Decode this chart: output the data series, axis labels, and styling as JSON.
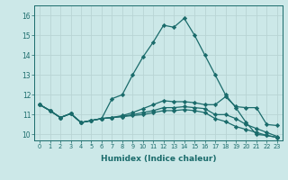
{
  "xlabel": "Humidex (Indice chaleur)",
  "background_color": "#cce8e8",
  "grid_color": "#b8d4d4",
  "line_color": "#1a6b6b",
  "xlim": [
    -0.5,
    23.5
  ],
  "ylim": [
    9.7,
    16.5
  ],
  "xticks": [
    0,
    1,
    2,
    3,
    4,
    5,
    6,
    7,
    8,
    9,
    10,
    11,
    12,
    13,
    14,
    15,
    16,
    17,
    18,
    19,
    20,
    21,
    22,
    23
  ],
  "yticks": [
    10,
    11,
    12,
    13,
    14,
    15,
    16
  ],
  "series": [
    [
      11.5,
      11.2,
      10.85,
      11.05,
      10.6,
      10.7,
      10.8,
      11.8,
      12.0,
      13.0,
      13.9,
      14.65,
      15.5,
      15.4,
      15.85,
      15.0,
      14.0,
      13.0,
      12.0,
      11.35,
      10.6,
      10.0,
      9.95,
      9.85
    ],
    [
      11.5,
      11.2,
      10.85,
      11.05,
      10.6,
      10.7,
      10.8,
      10.85,
      10.95,
      11.1,
      11.3,
      11.5,
      11.7,
      11.65,
      11.65,
      11.6,
      11.5,
      11.5,
      11.9,
      11.4,
      11.35,
      11.35,
      10.5,
      10.45
    ],
    [
      11.5,
      11.2,
      10.85,
      11.05,
      10.6,
      10.7,
      10.8,
      10.85,
      10.9,
      11.0,
      11.1,
      11.2,
      11.35,
      11.35,
      11.4,
      11.35,
      11.3,
      11.0,
      11.0,
      10.8,
      10.5,
      10.3,
      10.1,
      9.9
    ],
    [
      11.5,
      11.2,
      10.85,
      11.05,
      10.6,
      10.7,
      10.8,
      10.85,
      10.9,
      10.95,
      11.0,
      11.1,
      11.2,
      11.2,
      11.25,
      11.2,
      11.1,
      10.8,
      10.65,
      10.4,
      10.25,
      10.1,
      9.95,
      9.85
    ]
  ],
  "marker": "D",
  "markersize": 2.2,
  "linewidth": 0.9
}
